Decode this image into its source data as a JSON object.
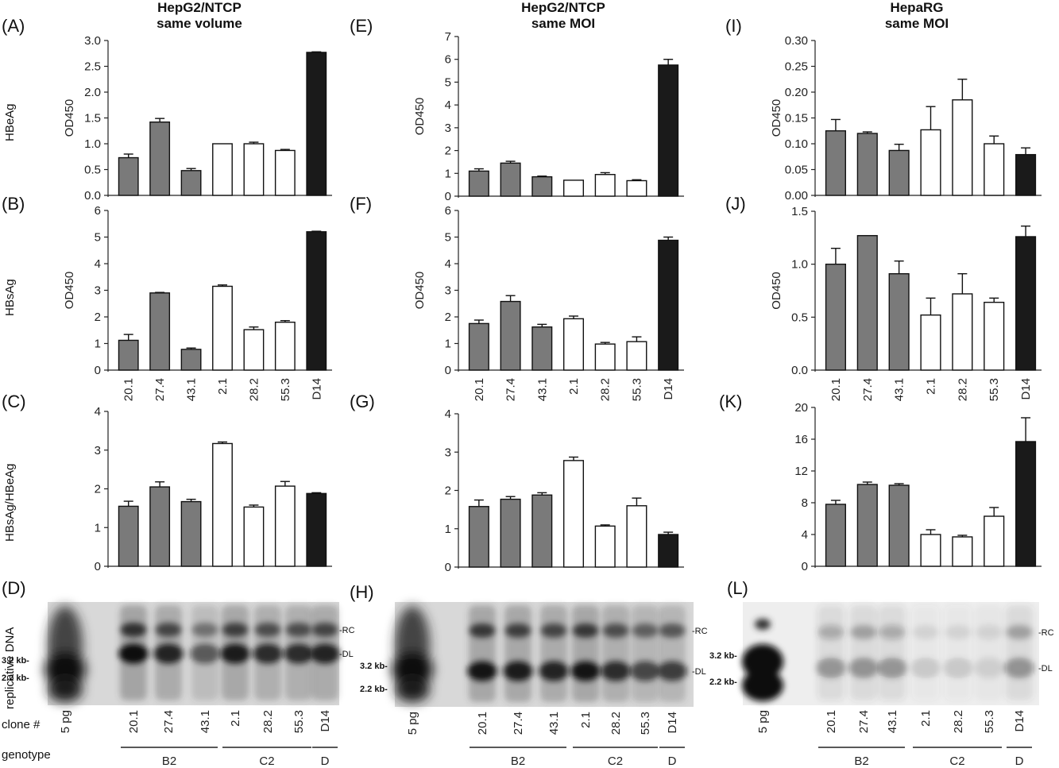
{
  "column_titles": [
    {
      "line1": "HepG2/NTCP",
      "line2": "same volume"
    },
    {
      "line1": "HepG2/NTCP",
      "line2": "same MOI"
    },
    {
      "line1": "HepaRG",
      "line2": "same MOI"
    }
  ],
  "row_labels": [
    "HBeAg",
    "HBsAg",
    "HBsAg/HBeAg",
    "replicative DNA"
  ],
  "colors": {
    "B2": "#7a7a7a",
    "C2": "#ffffff",
    "D": "#1a1a1a",
    "blot_bg": "#d8d8d8",
    "band": "#111111"
  },
  "chart_data": [
    {
      "panel": "(A)",
      "type": "bar",
      "ylabel": "OD450",
      "ylim": [
        0,
        3.0
      ],
      "yticks": [
        "0.0",
        "0.5",
        "1.0",
        "1.5",
        "2.0",
        "2.5",
        "3.0"
      ],
      "categories": [
        "20.1",
        "27.4",
        "43.1",
        "2.1",
        "28.2",
        "55.3",
        "D14"
      ],
      "values": [
        0.73,
        1.42,
        0.48,
        1.0,
        1.0,
        0.87,
        2.77
      ],
      "errors": [
        0.07,
        0.07,
        0.04,
        0.0,
        0.03,
        0.02,
        0.01
      ],
      "genotypes": [
        "B2",
        "B2",
        "B2",
        "C2",
        "C2",
        "C2",
        "D"
      ],
      "show_xticks": false
    },
    {
      "panel": "(B)",
      "type": "bar",
      "ylabel": "OD450",
      "ylim": [
        0,
        6
      ],
      "yticks": [
        "0",
        "1",
        "2",
        "3",
        "4",
        "5",
        "6"
      ],
      "categories": [
        "20.1",
        "27.4",
        "43.1",
        "2.1",
        "28.2",
        "55.3",
        "D14"
      ],
      "values": [
        1.12,
        2.9,
        0.78,
        3.15,
        1.52,
        1.8,
        5.2
      ],
      "errors": [
        0.22,
        0.02,
        0.05,
        0.05,
        0.1,
        0.06,
        0.02
      ],
      "genotypes": [
        "B2",
        "B2",
        "B2",
        "C2",
        "C2",
        "C2",
        "D"
      ],
      "show_xticks": true
    },
    {
      "panel": "(C)",
      "type": "bar",
      "ylabel": "",
      "ylim": [
        0,
        4
      ],
      "yticks": [
        "0",
        "1",
        "2",
        "3",
        "4"
      ],
      "categories": [
        "20.1",
        "27.4",
        "43.1",
        "2.1",
        "28.2",
        "55.3",
        "D14"
      ],
      "values": [
        1.55,
        2.05,
        1.67,
        3.17,
        1.53,
        2.07,
        1.88
      ],
      "errors": [
        0.13,
        0.13,
        0.06,
        0.04,
        0.05,
        0.12,
        0.02
      ],
      "genotypes": [
        "B2",
        "B2",
        "B2",
        "C2",
        "C2",
        "C2",
        "D"
      ],
      "show_xticks": false
    },
    {
      "panel": "(E)",
      "type": "bar",
      "ylabel": "OD450",
      "ylim": [
        0,
        7
      ],
      "yticks": [
        "0",
        "1",
        "2",
        "3",
        "4",
        "5",
        "6",
        "7"
      ],
      "categories": [
        "20.1",
        "27.4",
        "43.1",
        "2.1",
        "28.2",
        "55.3",
        "D14"
      ],
      "values": [
        1.1,
        1.45,
        0.85,
        0.7,
        0.95,
        0.68,
        5.75
      ],
      "errors": [
        0.1,
        0.08,
        0.03,
        0.0,
        0.08,
        0.04,
        0.25
      ],
      "genotypes": [
        "B2",
        "B2",
        "B2",
        "C2",
        "C2",
        "C2",
        "D"
      ],
      "show_xticks": false
    },
    {
      "panel": "(F)",
      "type": "bar",
      "ylabel": "OD450",
      "ylim": [
        0,
        6
      ],
      "yticks": [
        "0",
        "1",
        "2",
        "3",
        "4",
        "5",
        "6"
      ],
      "categories": [
        "20.1",
        "27.4",
        "43.1",
        "2.1",
        "28.2",
        "55.3",
        "D14"
      ],
      "values": [
        1.75,
        2.58,
        1.62,
        1.93,
        0.98,
        1.07,
        4.88
      ],
      "errors": [
        0.13,
        0.22,
        0.1,
        0.1,
        0.06,
        0.18,
        0.12
      ],
      "genotypes": [
        "B2",
        "B2",
        "B2",
        "C2",
        "C2",
        "C2",
        "D"
      ],
      "show_xticks": true
    },
    {
      "panel": "(G)",
      "type": "bar",
      "ylabel": "",
      "ylim": [
        0,
        4
      ],
      "yticks": [
        "0",
        "1",
        "2",
        "3",
        "4"
      ],
      "categories": [
        "20.1",
        "27.4",
        "43.1",
        "2.1",
        "28.2",
        "55.3",
        "D14"
      ],
      "values": [
        1.58,
        1.77,
        1.88,
        2.78,
        1.07,
        1.6,
        0.85
      ],
      "errors": [
        0.17,
        0.07,
        0.06,
        0.09,
        0.03,
        0.2,
        0.06
      ],
      "genotypes": [
        "B2",
        "B2",
        "B2",
        "C2",
        "C2",
        "C2",
        "D"
      ],
      "show_xticks": false
    },
    {
      "panel": "(I)",
      "type": "bar",
      "ylabel": "OD450",
      "ylim": [
        0,
        0.3
      ],
      "yticks": [
        "0.00",
        "0.05",
        "0.10",
        "0.15",
        "0.20",
        "0.25",
        "0.30"
      ],
      "categories": [
        "20.1",
        "27.4",
        "43.1",
        "2.1",
        "28.2",
        "55.3",
        "D14"
      ],
      "values": [
        0.125,
        0.12,
        0.087,
        0.127,
        0.185,
        0.1,
        0.079
      ],
      "errors": [
        0.022,
        0.003,
        0.012,
        0.045,
        0.04,
        0.015,
        0.013
      ],
      "genotypes": [
        "B2",
        "B2",
        "B2",
        "C2",
        "C2",
        "C2",
        "D"
      ],
      "show_xticks": false
    },
    {
      "panel": "(J)",
      "type": "bar",
      "ylabel": "OD450",
      "ylim": [
        0,
        1.5
      ],
      "yticks": [
        "0.0",
        "0.5",
        "1.0",
        "1.5"
      ],
      "categories": [
        "20.1",
        "27.4",
        "43.1",
        "2.1",
        "28.2",
        "55.3",
        "D14"
      ],
      "values": [
        1.0,
        1.27,
        0.91,
        0.52,
        0.72,
        0.64,
        1.26
      ],
      "errors": [
        0.15,
        0.0,
        0.12,
        0.16,
        0.19,
        0.04,
        0.1
      ],
      "genotypes": [
        "B2",
        "B2",
        "B2",
        "C2",
        "C2",
        "C2",
        "D"
      ],
      "show_xticks": true
    },
    {
      "panel": "(K)",
      "type": "bar",
      "ylabel": "",
      "ylim": [
        0,
        20
      ],
      "yticks": [
        "0",
        "4",
        "8",
        "12",
        "16",
        "20"
      ],
      "categories": [
        "20.1",
        "27.4",
        "43.1",
        "2.1",
        "28.2",
        "55.3",
        "D14"
      ],
      "values": [
        7.8,
        10.3,
        10.2,
        4.0,
        3.7,
        6.3,
        15.7
      ],
      "errors": [
        0.5,
        0.3,
        0.2,
        0.6,
        0.2,
        1.1,
        3.0
      ],
      "genotypes": [
        "B2",
        "B2",
        "B2",
        "C2",
        "C2",
        "C2",
        "D"
      ],
      "show_xticks": false
    }
  ],
  "blots": [
    {
      "panel": "(D)",
      "lanes": [
        "5 pg",
        "20.1",
        "27.4",
        "43.1",
        "2.1",
        "28.2",
        "55.3",
        "D14"
      ],
      "markers": [
        "3.2 kb-",
        "2.2 kb-"
      ],
      "bands": [
        "-RC",
        "-DL"
      ],
      "clone_label": "clone #",
      "genotype_label": "genotype",
      "groups": [
        "B2",
        "C2",
        "D"
      ]
    },
    {
      "panel": "(H)",
      "lanes": [
        "5 pg",
        "20.1",
        "27.4",
        "43.1",
        "2.1",
        "28.2",
        "55.3",
        "D14"
      ],
      "markers": [
        "3.2 kb-",
        "2.2 kb-"
      ],
      "bands": [
        "-RC",
        "-DL"
      ],
      "groups": [
        "B2",
        "C2",
        "D"
      ]
    },
    {
      "panel": "(L)",
      "lanes": [
        "5 pg",
        "20.1",
        "27.4",
        "43.1",
        "2.1",
        "28.2",
        "55.3",
        "D14"
      ],
      "markers": [
        "3.2 kb-",
        "2.2 kb-"
      ],
      "bands": [
        "-RC",
        "-DL"
      ],
      "groups": [
        "B2",
        "C2",
        "D"
      ]
    }
  ]
}
